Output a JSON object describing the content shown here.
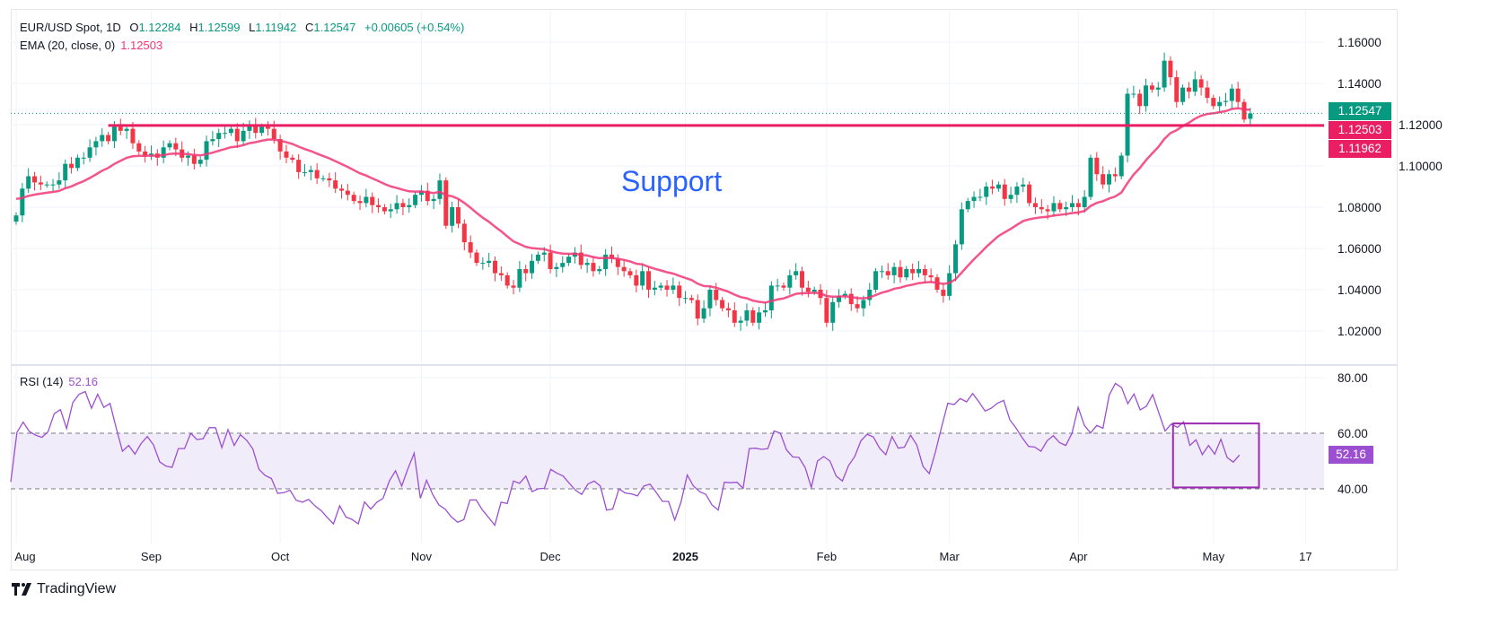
{
  "header": {
    "symbol": "EUR/USD Spot, 1D",
    "open_label": "O",
    "open": "1.12284",
    "high_label": "H",
    "high": "1.12599",
    "low_label": "L",
    "low": "1.11942",
    "close_label": "C",
    "close": "1.12547",
    "change": "+0.00605 (+0.54%)",
    "ema_label": "EMA (20, close, 0)",
    "ema_value": "1.12503"
  },
  "rsi_legend": {
    "label": "RSI (14)",
    "value": "52.16"
  },
  "badges": {
    "price": "1.12547",
    "ema": "1.12503",
    "support": "1.11962",
    "rsi": "52.16"
  },
  "annotation": {
    "support_text": "Support"
  },
  "brand": "TradingView",
  "colors": {
    "up": "#089981",
    "down": "#f23645",
    "ema": "#f23674",
    "support_line": "#e91e63",
    "rsi": "#9c4fd0",
    "text_blue": "#2962ff"
  },
  "chart_data": [
    {
      "type": "candlestick",
      "title": "EUR/USD Spot, 1D",
      "ylim": [
        1.005,
        1.172
      ],
      "yticks": [
        "1.16000",
        "1.14000",
        "1.12000",
        "1.10000",
        "1.08000",
        "1.06000",
        "1.04000",
        "1.02000"
      ],
      "ytick_values": [
        1.16,
        1.14,
        1.12,
        1.1,
        1.08,
        1.06,
        1.04,
        1.02
      ],
      "xticks": [
        "Aug",
        "Sep",
        "Oct",
        "Nov",
        "Dec",
        "2025",
        "Feb",
        "Mar",
        "Apr",
        "May",
        "17"
      ],
      "xtick_day_index": [
        0,
        22,
        43,
        66,
        87,
        109,
        132,
        152,
        173,
        195,
        210
      ],
      "ema_period": 20,
      "ema_start": 1.084,
      "support_level": 1.1196,
      "support_start_index": 15,
      "last_open": 1.12284,
      "closes": [
        1.076,
        1.089,
        1.095,
        1.092,
        1.091,
        1.091,
        1.091,
        1.093,
        1.101,
        1.099,
        1.104,
        1.104,
        1.109,
        1.112,
        1.115,
        1.112,
        1.119,
        1.117,
        1.118,
        1.111,
        1.107,
        1.105,
        1.106,
        1.104,
        1.109,
        1.111,
        1.108,
        1.104,
        1.105,
        1.101,
        1.103,
        1.112,
        1.113,
        1.116,
        1.116,
        1.118,
        1.112,
        1.117,
        1.12,
        1.116,
        1.119,
        1.118,
        1.113,
        1.107,
        1.104,
        1.103,
        1.097,
        1.097,
        1.098,
        1.094,
        1.094,
        1.093,
        1.089,
        1.088,
        1.086,
        1.083,
        1.082,
        1.085,
        1.081,
        1.08,
        1.078,
        1.079,
        1.082,
        1.08,
        1.081,
        1.086,
        1.088,
        1.083,
        1.084,
        1.093,
        1.071,
        1.08,
        1.072,
        1.063,
        1.058,
        1.053,
        1.053,
        1.054,
        1.048,
        1.047,
        1.042,
        1.041,
        1.05,
        1.048,
        1.054,
        1.057,
        1.058,
        1.05,
        1.051,
        1.053,
        1.056,
        1.058,
        1.052,
        1.053,
        1.049,
        1.05,
        1.057,
        1.055,
        1.051,
        1.049,
        1.047,
        1.042,
        1.049,
        1.04,
        1.041,
        1.042,
        1.04,
        1.042,
        1.036,
        1.036,
        1.035,
        1.026,
        1.031,
        1.04,
        1.035,
        1.031,
        1.03,
        1.024,
        1.025,
        1.03,
        1.024,
        1.029,
        1.03,
        1.042,
        1.042,
        1.041,
        1.047,
        1.049,
        1.041,
        1.039,
        1.04,
        1.036,
        1.024,
        1.034,
        1.037,
        1.038,
        1.033,
        1.031,
        1.035,
        1.04,
        1.049,
        1.049,
        1.047,
        1.051,
        1.046,
        1.05,
        1.048,
        1.05,
        1.047,
        1.046,
        1.04,
        1.037,
        1.048,
        1.062,
        1.079,
        1.083,
        1.085,
        1.085,
        1.09,
        1.089,
        1.091,
        1.084,
        1.086,
        1.09,
        1.091,
        1.082,
        1.08,
        1.079,
        1.078,
        1.082,
        1.079,
        1.08,
        1.082,
        1.08,
        1.085,
        1.104,
        1.096,
        1.091,
        1.096,
        1.095,
        1.105,
        1.135,
        1.135,
        1.129,
        1.139,
        1.137,
        1.138,
        1.151,
        1.143,
        1.131,
        1.138,
        1.136,
        1.142,
        1.138,
        1.133,
        1.129,
        1.131,
        1.1315,
        1.1375,
        1.131,
        1.1225,
        1.12547
      ]
    },
    {
      "type": "line",
      "title": "RSI (14)",
      "ylim": [
        20,
        85
      ],
      "yticks": [
        "80.00",
        "60.00",
        "40.00"
      ],
      "ytick_values": [
        80,
        60,
        40
      ],
      "band": [
        40,
        60
      ],
      "highlight_box": {
        "from_index": 189,
        "to_index": 203,
        "ymin": 40.5,
        "ymax": 63.5
      },
      "values": [
        42.5,
        60.3,
        64,
        60.6,
        59.3,
        58.5,
        60.5,
        67,
        68.5,
        61.7,
        71,
        74,
        75,
        69,
        74,
        69.3,
        70.7,
        61.8,
        53.5,
        55.6,
        52.5,
        56.3,
        58.8,
        55.8,
        49.7,
        48.2,
        47.7,
        54.5,
        54.5,
        60,
        57.7,
        58,
        62,
        62,
        54.8,
        61.3,
        55.6,
        59.5,
        57.5,
        54.4,
        47,
        44.8,
        43.7,
        38.4,
        38.6,
        39.5,
        35.9,
        35.2,
        36.2,
        33.9,
        32.2,
        29.7,
        27.4,
        33.9,
        29.9,
        29,
        27.4,
        35.3,
        32.7,
        35.2,
        36.6,
        42.8,
        46.5,
        41,
        47.3,
        52.8,
        36.6,
        43.1,
        37.9,
        34.2,
        32.7,
        29.9,
        28,
        28.9,
        36,
        36,
        32.4,
        29.7,
        26.9,
        35.2,
        34.7,
        42.8,
        42,
        44.6,
        39,
        40,
        40.2,
        47,
        45.6,
        44.6,
        42,
        39.5,
        38,
        41.7,
        42.8,
        41,
        32.4,
        32.7,
        40,
        38.5,
        38.2,
        37.5,
        41,
        41.7,
        38.7,
        35.5,
        35.5,
        28.8,
        35.2,
        45,
        41,
        39,
        38,
        34.2,
        32.4,
        42.4,
        42.2,
        42.4,
        40.2,
        54.5,
        54.6,
        54.2,
        54.5,
        60.8,
        60,
        54,
        51.5,
        51.3,
        47.7,
        40.5,
        50,
        51.6,
        50,
        44.6,
        42.8,
        48.4,
        51.6,
        57.3,
        59.6,
        58.6,
        54.6,
        52.3,
        58.8,
        54.6,
        55,
        59.3,
        55.8,
        48,
        45.5,
        53.3,
        62.3,
        70.8,
        70.3,
        72.5,
        71.3,
        74.3,
        71.3,
        68,
        69,
        70.8,
        71.8,
        64.8,
        61.8,
        58.3,
        55.3,
        55,
        53.5,
        57.3,
        59.1,
        56.6,
        55.6,
        60,
        69.3,
        62.8,
        60.1,
        62.8,
        61.8,
        73.7,
        77.9,
        76.4,
        70.6,
        74.1,
        68.4,
        69.7,
        73.9,
        67.3,
        60.8,
        63.3,
        62.1,
        64.1,
        55.6,
        57.6,
        52.3,
        55.6,
        52.5,
        57.8,
        51.3,
        49.6,
        52.16
      ]
    }
  ]
}
